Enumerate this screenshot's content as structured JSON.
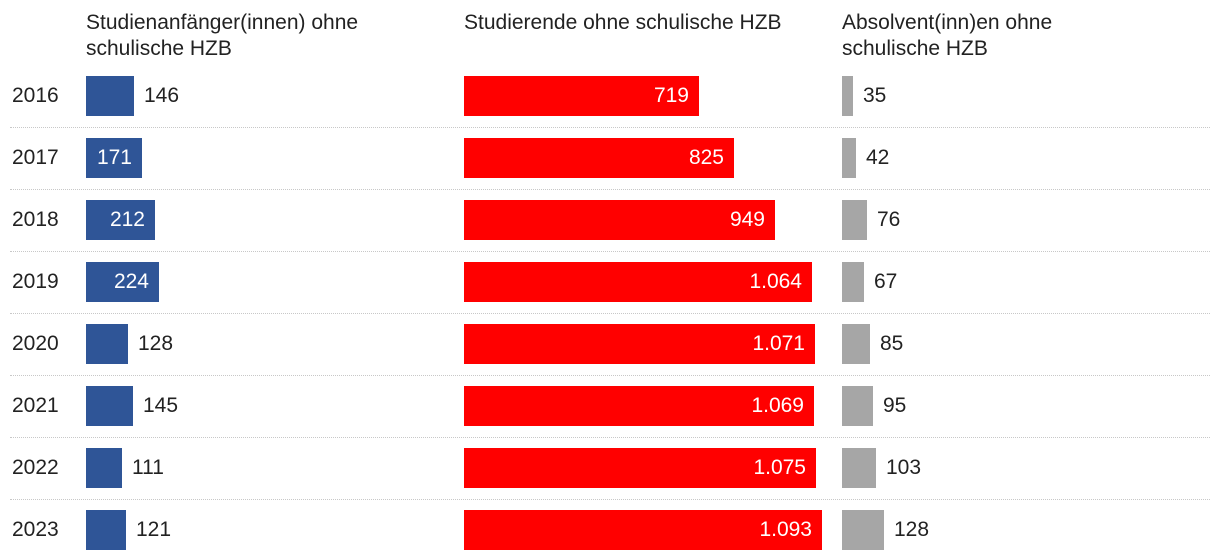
{
  "chart_data": {
    "type": "bar",
    "orientation": "horizontal",
    "categories": [
      "2016",
      "2017",
      "2018",
      "2019",
      "2020",
      "2021",
      "2022",
      "2023"
    ],
    "series": [
      {
        "name": "Studienanfänger(innen) ohne schulische HZB",
        "color": "#2f5597",
        "values": [
          146,
          171,
          212,
          224,
          128,
          145,
          111,
          121
        ],
        "labels": [
          "146",
          "171",
          "212",
          "224",
          "128",
          "145",
          "111",
          "121"
        ]
      },
      {
        "name": "Studierende ohne schulische HZB",
        "color": "#ff0000",
        "values": [
          719,
          825,
          949,
          1064,
          1071,
          1069,
          1075,
          1093
        ],
        "labels": [
          "719",
          "825",
          "949",
          "1.064",
          "1.071",
          "1.069",
          "1.075",
          "1.093"
        ]
      },
      {
        "name": "Absolvent(inn)en ohne schulische HZB",
        "color": "#a6a6a6",
        "values": [
          35,
          42,
          76,
          67,
          85,
          95,
          103,
          128
        ],
        "labels": [
          "35",
          "42",
          "76",
          "67",
          "85",
          "95",
          "103",
          "128"
        ]
      }
    ],
    "title": "",
    "xlabel": "",
    "ylabel": "",
    "grid": false
  }
}
